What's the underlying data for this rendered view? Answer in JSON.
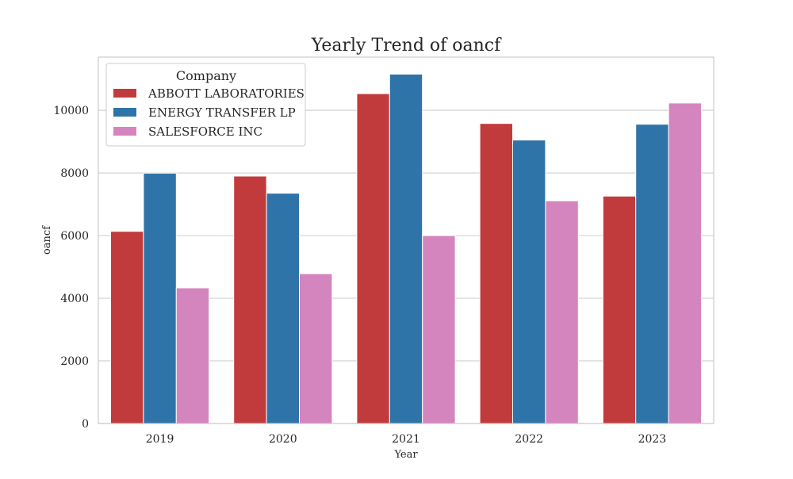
{
  "chart_data": {
    "type": "bar",
    "title": "Yearly Trend of oancf",
    "xlabel": "Year",
    "ylabel": "oancf",
    "categories": [
      "2019",
      "2020",
      "2021",
      "2022",
      "2023"
    ],
    "ylim": [
      0,
      11700
    ],
    "yticks": [
      0,
      2000,
      4000,
      6000,
      8000,
      10000
    ],
    "grid": true,
    "legend": {
      "title": "Company",
      "position": "top-left"
    },
    "series": [
      {
        "name": "ABBOTT LABORATORIES",
        "color": "#c23b3c",
        "values": [
          6136,
          7901,
          10533,
          9581,
          7261
        ]
      },
      {
        "name": "ENERGY TRANSFER LP",
        "color": "#2f74a8",
        "values": [
          7994,
          7353,
          11155,
          9052,
          9556
        ]
      },
      {
        "name": "SALESFORCE INC",
        "color": "#d585be",
        "values": [
          4331,
          4784,
          6000,
          7111,
          10234
        ]
      }
    ]
  }
}
